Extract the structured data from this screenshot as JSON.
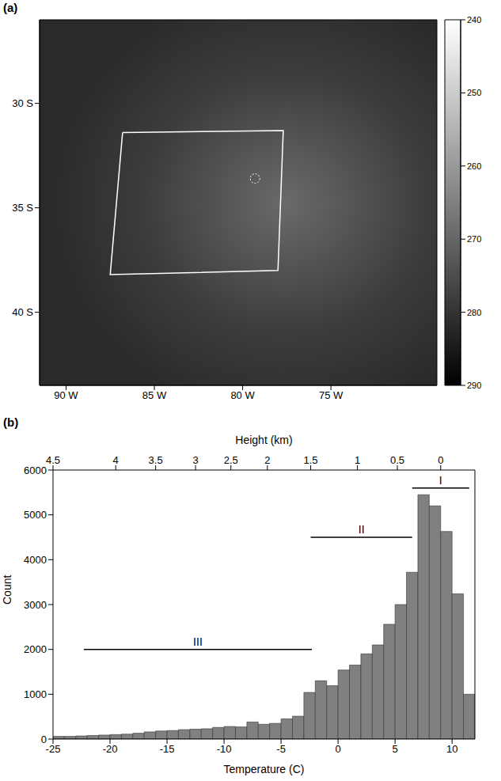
{
  "chart_data": [
    {
      "panel": "(a)",
      "type": "map",
      "xlim": [
        -91.5,
        -69
      ],
      "ylim": [
        -43.5,
        -26
      ],
      "xticks": [
        {
          "value": -90,
          "label": "90 W"
        },
        {
          "value": -85,
          "label": "85 W"
        },
        {
          "value": -80,
          "label": "80 W"
        },
        {
          "value": -75,
          "label": "75 W"
        }
      ],
      "yticks": [
        {
          "value": -30,
          "label": "30 S"
        },
        {
          "value": -35,
          "label": "35 S"
        },
        {
          "value": -40,
          "label": "40 S"
        }
      ],
      "region_box": {
        "lon": [
          -86.8,
          -77.7,
          -78.0,
          -87.5
        ],
        "lat": [
          -31.4,
          -31.3,
          -38.0,
          -38.2
        ]
      },
      "circle_point": {
        "lon": -79.3,
        "lat": -33.6
      },
      "colorbar": {
        "range": [
          240,
          290
        ],
        "ticks": [
          240,
          250,
          260,
          270,
          280,
          290
        ]
      }
    },
    {
      "panel": "(b)",
      "type": "histogram",
      "xlabel": "Temperature (C)",
      "ylabel": "Count",
      "bins": [
        -25,
        -24,
        -23,
        -22,
        -21,
        -20,
        -19,
        -18,
        -17,
        -16,
        -15,
        -14,
        -13,
        -12,
        -11,
        -10,
        -9,
        -8,
        -7,
        -6,
        -5,
        -4,
        -3,
        -2,
        -1,
        0,
        1,
        2,
        3,
        4,
        5,
        6,
        7,
        8,
        9,
        10,
        11,
        12
      ],
      "values": [
        60,
        60,
        70,
        80,
        90,
        100,
        110,
        130,
        160,
        180,
        190,
        210,
        220,
        230,
        260,
        280,
        270,
        380,
        330,
        350,
        450,
        510,
        1040,
        1300,
        1190,
        1540,
        1650,
        1900,
        2100,
        2560,
        3000,
        3720,
        5450,
        5200,
        4630,
        3240,
        1000
      ],
      "color": "#808080",
      "xlim": [
        -25,
        12
      ],
      "xticks": [
        -25,
        -20,
        -15,
        -10,
        -5,
        0,
        5,
        10
      ],
      "ylim": [
        0,
        6000
      ],
      "yticks": [
        0,
        1000,
        2000,
        3000,
        4000,
        5000,
        6000
      ],
      "top_axis": {
        "label": "Height (km)",
        "ticks": [
          {
            "temperature": -25,
            "height": 4.5
          },
          {
            "temperature": -19.5,
            "height": 4
          },
          {
            "temperature": -16,
            "height": 3.5
          },
          {
            "temperature": -12.5,
            "height": 3
          },
          {
            "temperature": -9.4,
            "height": 2.5
          },
          {
            "temperature": -6.2,
            "height": 2
          },
          {
            "temperature": -2.4,
            "height": 1.5
          },
          {
            "temperature": 1.7,
            "height": 1
          },
          {
            "temperature": 5.2,
            "height": 0.5
          },
          {
            "temperature": 9,
            "height": 0
          }
        ]
      },
      "annotations": [
        {
          "label": "I",
          "x": [
            6.5,
            11.5
          ],
          "y": 5600
        },
        {
          "label": "II",
          "x": [
            -2.4,
            6.5
          ],
          "y": 4500
        },
        {
          "label": "III",
          "x": [
            -22.3,
            -2.3
          ],
          "y": 2000
        }
      ]
    }
  ]
}
